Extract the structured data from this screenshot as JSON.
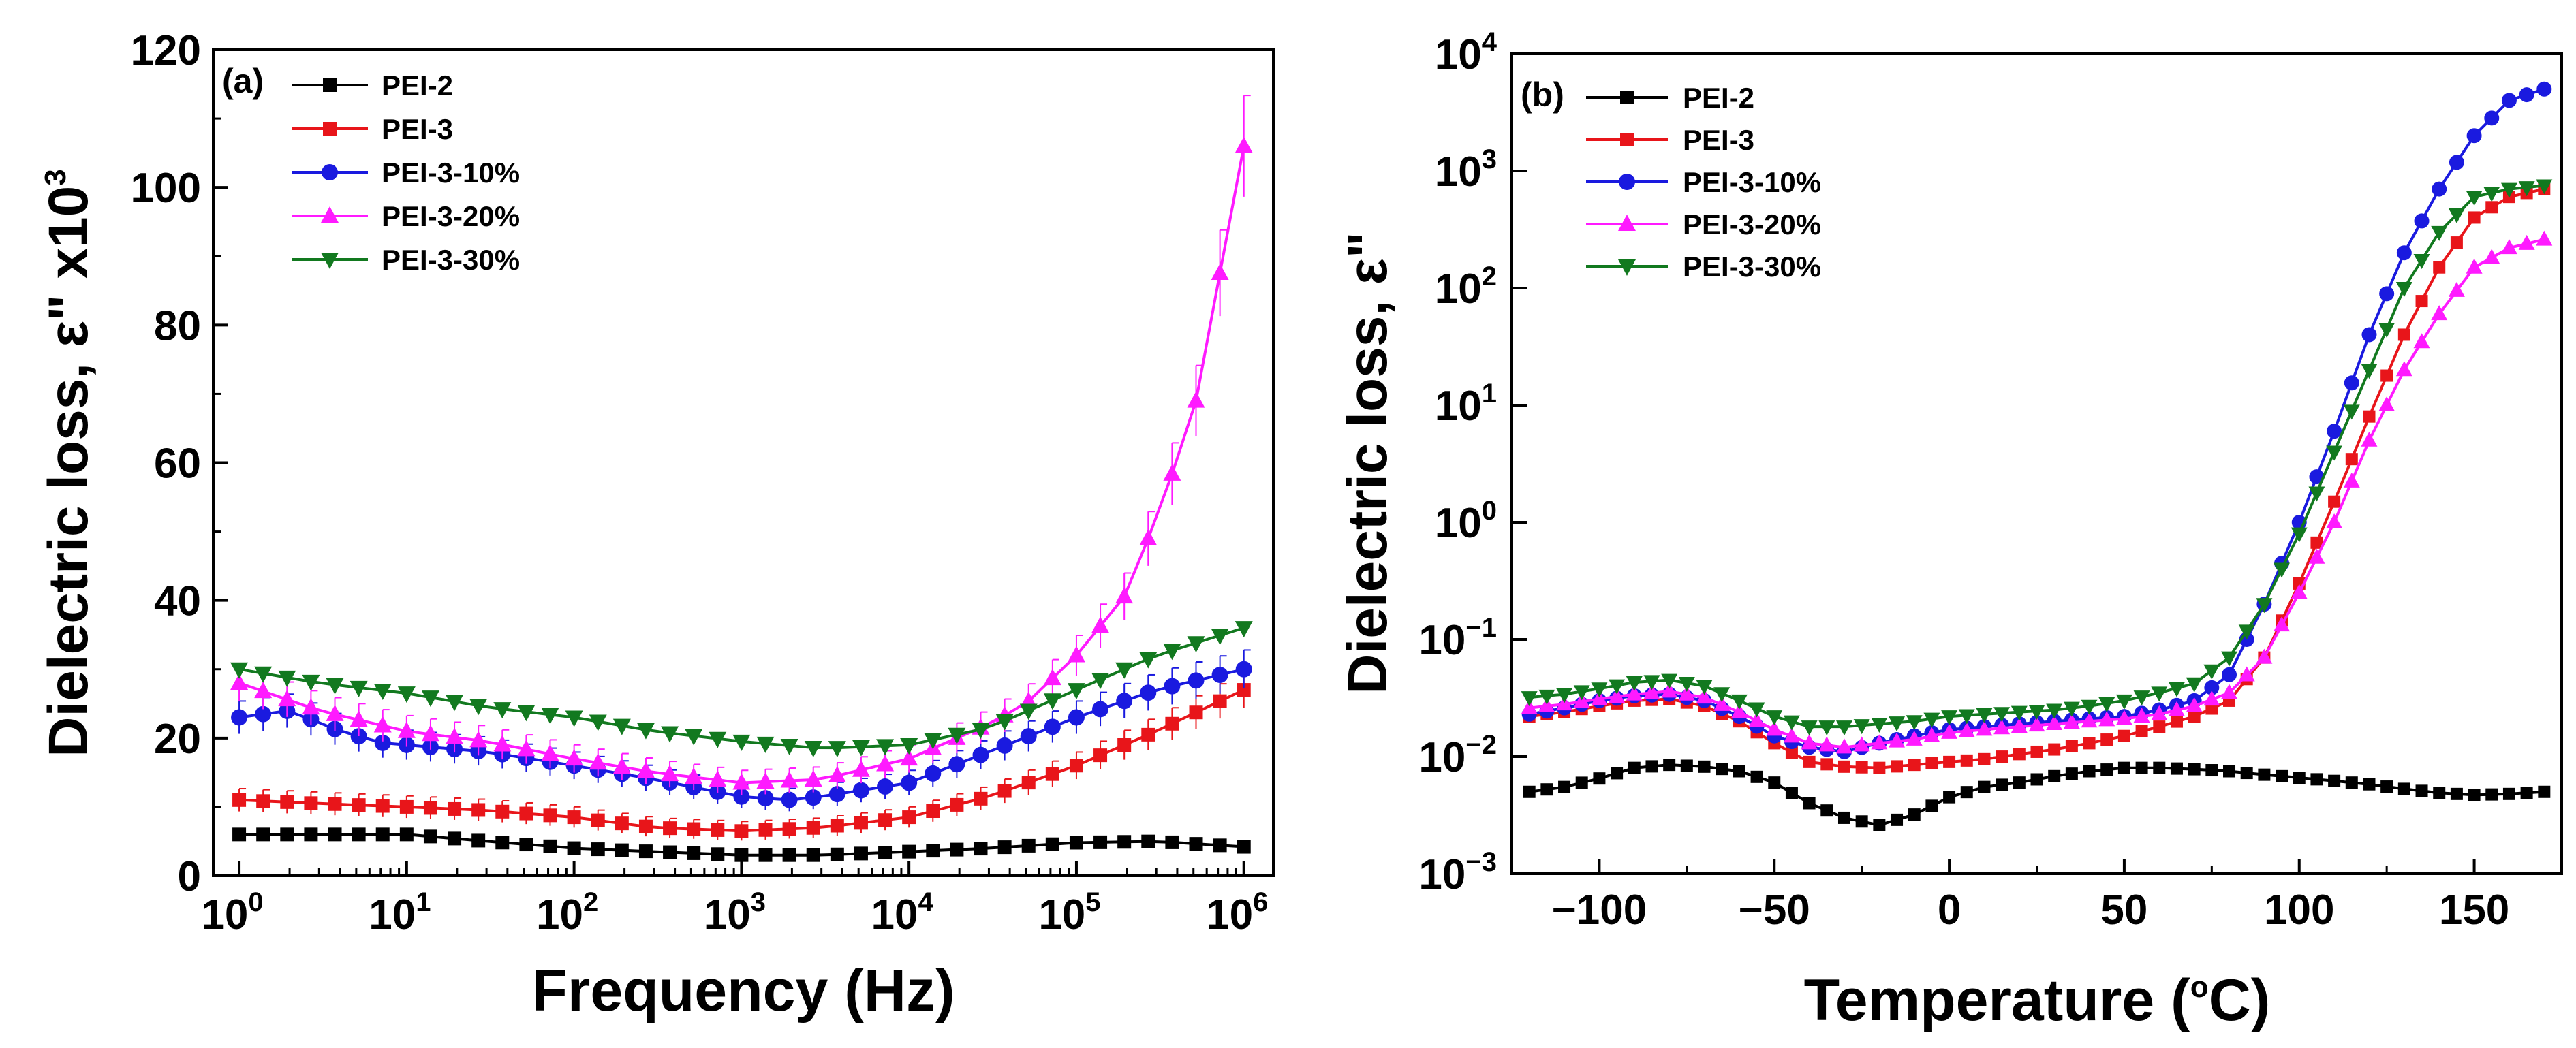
{
  "figure": {
    "panels": [
      "a",
      "b"
    ]
  },
  "chart_data": [
    {
      "type": "line",
      "panel_label": "(a)",
      "title": "",
      "xlabel": "Frequency (Hz)",
      "ylabel_main": "Dielectric loss, ε\" x10",
      "ylabel_sup": "3",
      "x_scale": "log",
      "y_scale": "linear",
      "xlim": [
        0.7,
        1500000
      ],
      "ylim": [
        0,
        120
      ],
      "x_ticks": [
        {
          "value": 1,
          "base": "10",
          "exp": "0"
        },
        {
          "value": 10,
          "base": "10",
          "exp": "1"
        },
        {
          "value": 100,
          "base": "10",
          "exp": "2"
        },
        {
          "value": 1000,
          "base": "10",
          "exp": "3"
        },
        {
          "value": 10000,
          "base": "10",
          "exp": "4"
        },
        {
          "value": 100000,
          "base": "10",
          "exp": "5"
        },
        {
          "value": 1000000,
          "base": "10",
          "exp": "6"
        }
      ],
      "y_ticks": [
        {
          "value": 0,
          "label": "0"
        },
        {
          "value": 20,
          "label": "20"
        },
        {
          "value": 40,
          "label": "40"
        },
        {
          "value": 60,
          "label": "60"
        },
        {
          "value": 80,
          "label": "80"
        },
        {
          "value": 100,
          "label": "100"
        },
        {
          "value": 120,
          "label": "120"
        }
      ],
      "x_minor_ticks": true,
      "y_minor_ticks": [
        10,
        30,
        50,
        70,
        90,
        110
      ],
      "grid": false,
      "legend_position": "top-left",
      "series": [
        {
          "name": "PEI-2",
          "color": "#000000",
          "marker": "square",
          "error_bars": false,
          "x": [
            1,
            2,
            4,
            10,
            30,
            100,
            300,
            1000,
            3000,
            10000,
            30000,
            100000,
            300000,
            1000000
          ],
          "y": [
            6,
            6,
            6,
            6,
            5,
            4,
            3.5,
            3,
            3,
            3.5,
            4,
            4.8,
            5,
            4.2
          ]
        },
        {
          "name": "PEI-3",
          "color": "#e8151a",
          "marker": "square",
          "error_bars": true,
          "x": [
            1,
            3,
            10,
            30,
            100,
            300,
            1000,
            3000,
            10000,
            30000,
            100000,
            300000,
            1000000
          ],
          "y": [
            11,
            10.5,
            10,
            9.5,
            8.5,
            7,
            6.5,
            7,
            8.5,
            11.5,
            16,
            21,
            27
          ]
        },
        {
          "name": "PEI-3-10%",
          "color": "#1a1adf",
          "marker": "circle",
          "error_bars": true,
          "x": [
            1,
            2,
            4,
            8,
            10,
            30,
            100,
            300,
            1000,
            2000,
            3000,
            10000,
            30000,
            100000,
            300000,
            1000000
          ],
          "y": [
            23,
            24,
            21,
            19,
            19,
            18,
            16,
            14,
            11.5,
            11,
            11.5,
            13.5,
            18,
            23,
            27,
            30
          ]
        },
        {
          "name": "PEI-3-20%",
          "color": "#ff1aff",
          "marker": "triangle-up",
          "error_bars": true,
          "x": [
            1,
            3,
            10,
            30,
            100,
            300,
            1000,
            3000,
            10000,
            30000,
            50000,
            100000,
            200000,
            300000,
            500000,
            700000,
            1000000
          ],
          "y": [
            28,
            24,
            21,
            19.5,
            17,
            15,
            13.5,
            14,
            17,
            22,
            25,
            32,
            41,
            52,
            67,
            86,
            106
          ]
        },
        {
          "name": "PEI-3-30%",
          "color": "#12791f",
          "marker": "triangle-down",
          "error_bars": false,
          "x": [
            1,
            3,
            10,
            30,
            100,
            300,
            1000,
            3000,
            10000,
            30000,
            100000,
            300000,
            1000000
          ],
          "y": [
            30,
            28,
            26.5,
            24.5,
            23,
            21,
            19.5,
            18.5,
            19,
            21.5,
            27,
            32,
            36
          ]
        }
      ]
    },
    {
      "type": "line",
      "panel_label": "(b)",
      "title": "",
      "xlabel_main": "Temperature (",
      "xlabel_sup": "o",
      "xlabel_end": "C)",
      "ylabel_main": "Dielectric loss, ε\"",
      "x_scale": "linear",
      "y_scale": "log",
      "xlim": [
        -125,
        175
      ],
      "ylim": [
        0.001,
        10000
      ],
      "x_ticks": [
        {
          "value": -100,
          "label": "−100"
        },
        {
          "value": -50,
          "label": "−50"
        },
        {
          "value": 0,
          "label": "0"
        },
        {
          "value": 50,
          "label": "50"
        },
        {
          "value": 100,
          "label": "100"
        },
        {
          "value": 150,
          "label": "150"
        }
      ],
      "x_minor_ticks": [
        -75,
        -25,
        25,
        75,
        125
      ],
      "y_ticks": [
        {
          "value": 0.001,
          "base": "10",
          "exp": "−3"
        },
        {
          "value": 0.01,
          "base": "10",
          "exp": "−2"
        },
        {
          "value": 0.1,
          "base": "10",
          "exp": "−1"
        },
        {
          "value": 1,
          "base": "10",
          "exp": "0"
        },
        {
          "value": 10,
          "base": "10",
          "exp": "1"
        },
        {
          "value": 100,
          "base": "10",
          "exp": "2"
        },
        {
          "value": 1000,
          "base": "10",
          "exp": "3"
        },
        {
          "value": 10000,
          "base": "10",
          "exp": "4"
        }
      ],
      "grid": false,
      "legend_position": "top-left",
      "series": [
        {
          "name": "PEI-2",
          "color": "#000000",
          "marker": "square",
          "x": [
            -120,
            -110,
            -100,
            -90,
            -80,
            -70,
            -60,
            -50,
            -40,
            -30,
            -20,
            -10,
            0,
            10,
            20,
            30,
            40,
            50,
            60,
            70,
            80,
            90,
            100,
            110,
            120,
            130,
            140,
            150,
            160,
            170
          ],
          "y": [
            0.005,
            0.0055,
            0.0065,
            0.008,
            0.0085,
            0.0082,
            0.0075,
            0.006,
            0.004,
            0.003,
            0.0026,
            0.0032,
            0.0045,
            0.0055,
            0.006,
            0.0068,
            0.0075,
            0.008,
            0.008,
            0.0078,
            0.0075,
            0.007,
            0.0066,
            0.0062,
            0.0058,
            0.0053,
            0.0049,
            0.0047,
            0.0048,
            0.005
          ]
        },
        {
          "name": "PEI-3",
          "color": "#e8151a",
          "marker": "square",
          "x": [
            -120,
            -110,
            -100,
            -90,
            -80,
            -70,
            -60,
            -50,
            -40,
            -30,
            -20,
            -10,
            0,
            10,
            20,
            30,
            40,
            50,
            60,
            70,
            80,
            90,
            100,
            110,
            120,
            130,
            140,
            150,
            160,
            170
          ],
          "y": [
            0.022,
            0.024,
            0.027,
            0.03,
            0.031,
            0.027,
            0.02,
            0.013,
            0.009,
            0.0082,
            0.008,
            0.0085,
            0.009,
            0.0095,
            0.0105,
            0.0115,
            0.013,
            0.015,
            0.018,
            0.022,
            0.03,
            0.07,
            0.3,
            1.5,
            8,
            40,
            150,
            400,
            600,
            700
          ]
        },
        {
          "name": "PEI-3-10%",
          "color": "#1a1adf",
          "marker": "circle",
          "x": [
            -120,
            -110,
            -100,
            -90,
            -80,
            -70,
            -60,
            -50,
            -40,
            -30,
            -20,
            -10,
            0,
            10,
            20,
            30,
            40,
            50,
            60,
            70,
            80,
            90,
            100,
            110,
            120,
            130,
            140,
            150,
            160,
            170
          ],
          "y": [
            0.023,
            0.026,
            0.03,
            0.033,
            0.034,
            0.03,
            0.022,
            0.015,
            0.012,
            0.011,
            0.013,
            0.015,
            0.017,
            0.018,
            0.019,
            0.02,
            0.021,
            0.022,
            0.025,
            0.03,
            0.05,
            0.2,
            1,
            6,
            40,
            200,
            700,
            2000,
            4000,
            5000
          ]
        },
        {
          "name": "PEI-3-20%",
          "color": "#ff1aff",
          "marker": "triangle-up",
          "x": [
            -120,
            -110,
            -100,
            -90,
            -80,
            -70,
            -60,
            -50,
            -40,
            -30,
            -20,
            -10,
            0,
            10,
            20,
            30,
            40,
            50,
            60,
            70,
            80,
            90,
            100,
            110,
            120,
            130,
            140,
            150,
            160,
            170
          ],
          "y": [
            0.026,
            0.028,
            0.031,
            0.034,
            0.036,
            0.032,
            0.024,
            0.017,
            0.013,
            0.012,
            0.013,
            0.014,
            0.016,
            0.017,
            0.018,
            0.019,
            0.02,
            0.021,
            0.023,
            0.027,
            0.035,
            0.07,
            0.25,
            1,
            5,
            20,
            60,
            150,
            220,
            260
          ]
        },
        {
          "name": "PEI-3-30%",
          "color": "#12791f",
          "marker": "triangle-down",
          "x": [
            -120,
            -110,
            -100,
            -90,
            -80,
            -70,
            -60,
            -50,
            -40,
            -30,
            -20,
            -10,
            0,
            10,
            20,
            30,
            40,
            50,
            60,
            70,
            80,
            90,
            100,
            110,
            120,
            130,
            140,
            150,
            160,
            170
          ],
          "y": [
            0.032,
            0.034,
            0.038,
            0.043,
            0.045,
            0.04,
            0.03,
            0.022,
            0.018,
            0.018,
            0.019,
            0.02,
            0.022,
            0.023,
            0.024,
            0.025,
            0.027,
            0.03,
            0.035,
            0.042,
            0.07,
            0.2,
            0.8,
            4,
            20,
            100,
            300,
            600,
            700,
            750
          ]
        }
      ]
    }
  ]
}
